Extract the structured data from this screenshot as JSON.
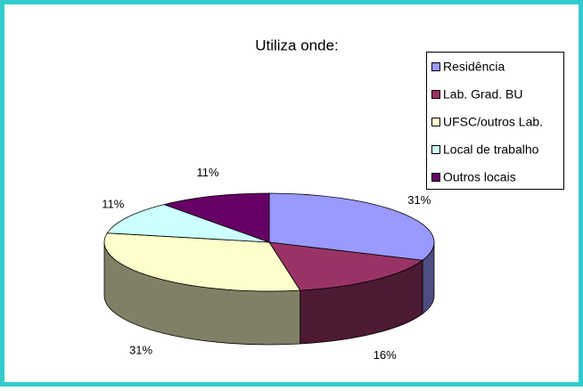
{
  "chart_data": {
    "type": "pie",
    "title": "Utiliza onde:",
    "categories": [
      "Residência",
      "Lab. Grad. BU",
      "UFSC/outros Lab.",
      "Local de trabalho",
      "Outros locais"
    ],
    "values": [
      31,
      16,
      31,
      11,
      11
    ],
    "value_labels": [
      "31%",
      "16%",
      "31%",
      "11%",
      "11%"
    ],
    "colors": [
      "#9999ff",
      "#993366",
      "#ffffcc",
      "#ccffff",
      "#660066"
    ],
    "legend": "right",
    "three_d": true
  }
}
